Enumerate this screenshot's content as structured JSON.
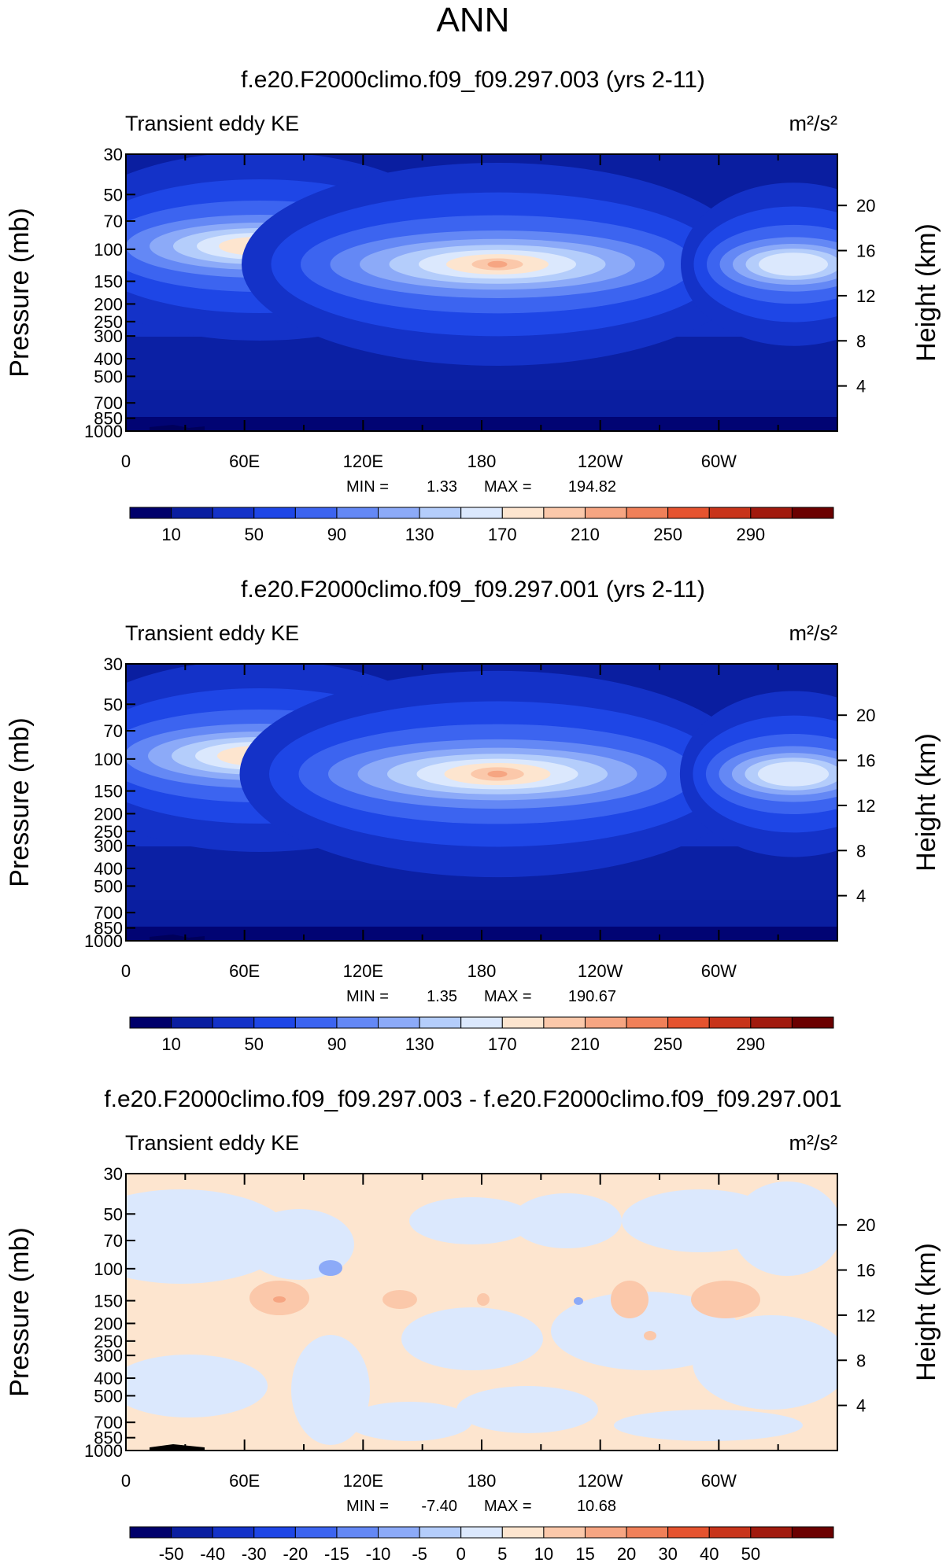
{
  "figure": {
    "title": "ANN"
  },
  "colors": {
    "absolute_scale": [
      "#00006b",
      "#0a1ea0",
      "#1432c8",
      "#1e46e6",
      "#3c64f0",
      "#6488f5",
      "#8caaf8",
      "#b4cdfb",
      "#dbe8fd",
      "#fde5cf",
      "#fbc8aa",
      "#f6a582",
      "#f08059",
      "#e5532f",
      "#c8341a",
      "#a11a0e",
      "#6b0000"
    ],
    "difference_scale": [
      "#00006b",
      "#0a1ea0",
      "#1432c8",
      "#1e46e6",
      "#3c64f0",
      "#6488f5",
      "#8caaf8",
      "#b4cdfb",
      "#dbe8fd",
      "#fde5cf",
      "#fbc8aa",
      "#f6a582",
      "#f08059",
      "#e5532f",
      "#c8341a",
      "#a11a0e",
      "#6b0000"
    ]
  },
  "chart_data": [
    {
      "type": "heatmap",
      "title": "f.e20.F2000climo.f09_f09.297.003 (yrs 2-11)",
      "field_label": "Transient eddy KE",
      "units": "m²/s²",
      "ylabel": "Pressure (mb)",
      "ylabel_right": "Height (km)",
      "x_ticks": [
        "0",
        "60E",
        "120E",
        "180",
        "120W",
        "60W"
      ],
      "x_range": [
        0,
        360
      ],
      "y_ticks": [
        "30",
        "50",
        "70",
        "100",
        "150",
        "200",
        "250",
        "300",
        "400",
        "500",
        "700",
        "850",
        "1000"
      ],
      "y_range_mb": [
        30,
        1000
      ],
      "y_scale": "log",
      "height_ticks": [
        "20",
        "16",
        "12",
        "8",
        "4"
      ],
      "stats": {
        "min_label": "MIN =",
        "min": "1.33",
        "max_label": "MAX =",
        "max": "194.82"
      },
      "min_value": 1.33,
      "max_value": 194.82,
      "colorbar_labels": [
        "10",
        "50",
        "90",
        "130",
        "170",
        "210",
        "250",
        "290"
      ],
      "levels": [
        10,
        30,
        50,
        70,
        90,
        110,
        130,
        150,
        170,
        190,
        210,
        230,
        250,
        270,
        290,
        310
      ],
      "jets": [
        {
          "lon": 60,
          "p": 150,
          "peak": 168
        },
        {
          "lon": 235,
          "p": 200,
          "peak": 194.82
        },
        {
          "lon": 330,
          "p": 200,
          "peak": 135
        }
      ]
    },
    {
      "type": "heatmap",
      "title": "f.e20.F2000climo.f09_f09.297.001 (yrs 2-11)",
      "field_label": "Transient eddy KE",
      "units": "m²/s²",
      "ylabel": "Pressure (mb)",
      "ylabel_right": "Height (km)",
      "x_ticks": [
        "0",
        "60E",
        "120E",
        "180",
        "120W",
        "60W"
      ],
      "x_range": [
        0,
        360
      ],
      "y_ticks": [
        "30",
        "50",
        "70",
        "100",
        "150",
        "200",
        "250",
        "300",
        "400",
        "500",
        "700",
        "850",
        "1000"
      ],
      "y_range_mb": [
        30,
        1000
      ],
      "y_scale": "log",
      "height_ticks": [
        "20",
        "16",
        "12",
        "8",
        "4"
      ],
      "stats": {
        "min_label": "MIN =",
        "min": "1.35",
        "max_label": "MAX =",
        "max": "190.67"
      },
      "min_value": 1.35,
      "max_value": 190.67,
      "colorbar_labels": [
        "10",
        "50",
        "90",
        "130",
        "170",
        "210",
        "250",
        "290"
      ],
      "levels": [
        10,
        30,
        50,
        70,
        90,
        110,
        130,
        150,
        170,
        190,
        210,
        230,
        250,
        270,
        290,
        310
      ],
      "jets": [
        {
          "lon": 60,
          "p": 150,
          "peak": 166
        },
        {
          "lon": 235,
          "p": 200,
          "peak": 190.67
        },
        {
          "lon": 330,
          "p": 200,
          "peak": 140
        }
      ]
    },
    {
      "type": "heatmap",
      "title": "f.e20.F2000climo.f09_f09.297.003 - f.e20.F2000climo.f09_f09.297.001",
      "field_label": "Transient eddy KE",
      "units": "m²/s²",
      "ylabel": "Pressure (mb)",
      "ylabel_right": "Height (km)",
      "x_ticks": [
        "0",
        "60E",
        "120E",
        "180",
        "120W",
        "60W"
      ],
      "x_range": [
        0,
        360
      ],
      "y_ticks": [
        "30",
        "50",
        "70",
        "100",
        "150",
        "200",
        "250",
        "300",
        "400",
        "500",
        "700",
        "850",
        "1000"
      ],
      "y_range_mb": [
        30,
        1000
      ],
      "y_scale": "log",
      "height_ticks": [
        "20",
        "16",
        "12",
        "8",
        "4"
      ],
      "stats": {
        "min_label": "MIN =",
        "min": "-7.40",
        "max_label": "MAX =",
        "max": "10.68"
      },
      "min_value": -7.4,
      "max_value": 10.68,
      "colorbar_labels": [
        "-50",
        "-40",
        "-30",
        "-20",
        "-15",
        "-10",
        "-5",
        "0",
        "5",
        "10",
        "15",
        "20",
        "30",
        "40",
        "50"
      ],
      "levels": [
        -50,
        -40,
        -30,
        -20,
        -15,
        -10,
        -5,
        0,
        5,
        10,
        15,
        20,
        30,
        40,
        50
      ]
    }
  ]
}
